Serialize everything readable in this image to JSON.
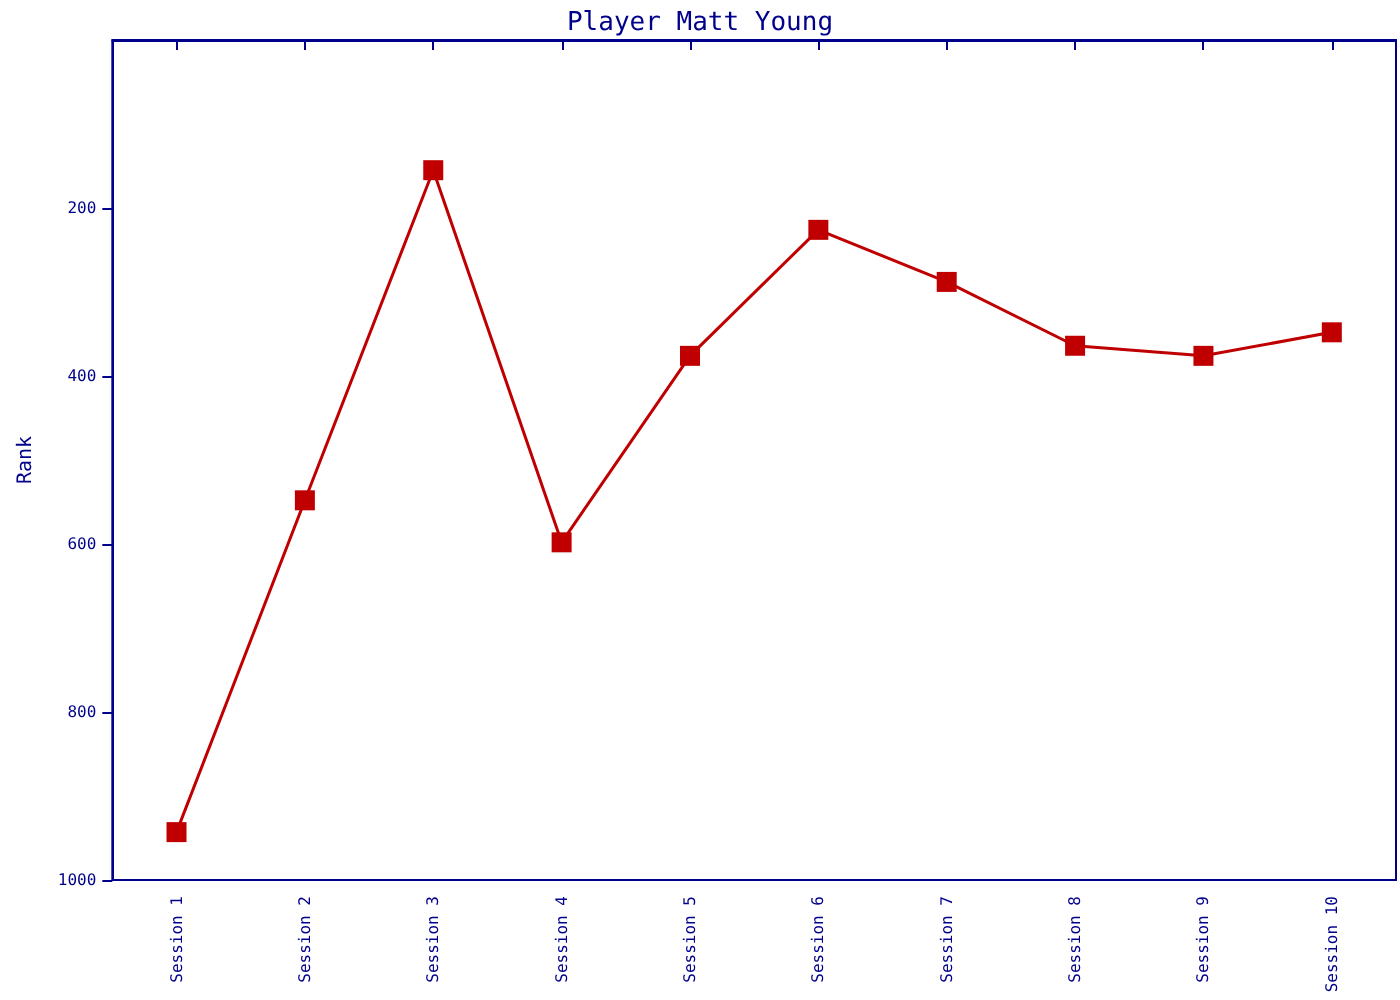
{
  "chart_data": {
    "type": "line",
    "title": "Player Matt Young",
    "ylabel": "Rank",
    "categories": [
      "Session 1",
      "Session 2",
      "Session 3",
      "Session 4",
      "Session 5",
      "Session 6",
      "Session 7",
      "Session 8",
      "Session 9",
      "Session 10"
    ],
    "series": [
      {
        "color": "#c00000",
        "values": [
          943,
          548,
          155,
          598,
          376,
          226,
          288,
          364,
          376,
          348
        ]
      }
    ],
    "ylim": [
      1000,
      0
    ],
    "yticks": [
      200,
      400,
      600,
      800,
      1000
    ],
    "grid": false,
    "marker": "square",
    "line_style": "solid"
  }
}
